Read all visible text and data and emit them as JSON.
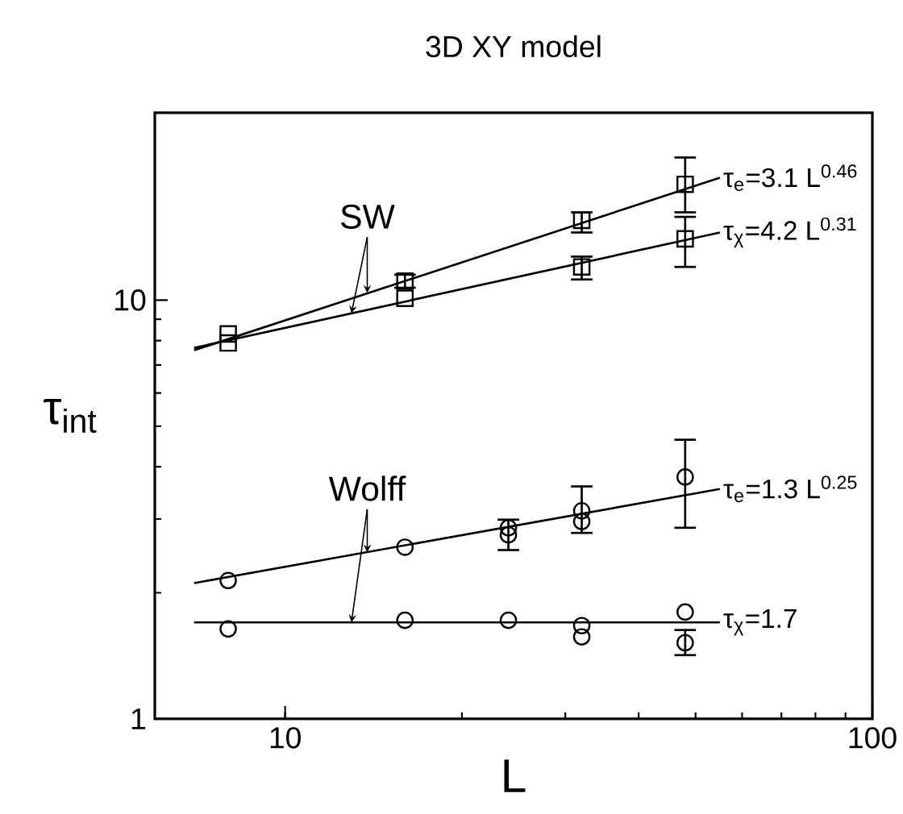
{
  "chart_data": {
    "type": "scatter",
    "title": "3D XY model",
    "xlabel": "L",
    "ylabel": "τ$_{int}$",
    "log": "xy",
    "xlim": [
      6,
      100
    ],
    "ylim": [
      1,
      28
    ],
    "xticks": [
      10,
      100
    ],
    "yticks": [
      1,
      10
    ],
    "grid": false,
    "series": [
      {
        "marker": "square",
        "color": "#000000",
        "x": [
          8,
          16,
          32,
          48
        ],
        "values": [
          8.3,
          11.1,
          15.5,
          18.9
        ],
        "errors": [
          null,
          [
            10.7,
            11.5
          ],
          [
            14.5,
            16.2
          ],
          [
            16.2,
            21.9
          ]
        ]
      },
      {
        "marker": "square",
        "color": "#000000",
        "x": [
          8,
          16,
          32,
          48
        ],
        "values": [
          7.9,
          10.1,
          12.0,
          14.0
        ],
        "errors": [
          null,
          null,
          [
            11.2,
            12.7
          ],
          [
            12.0,
            15.8
          ]
        ]
      },
      {
        "marker": "circle",
        "color": "#000000",
        "x": [
          8,
          16,
          24,
          24,
          32,
          32,
          48
        ],
        "values": [
          2.14,
          2.57,
          2.86,
          2.75,
          3.14,
          2.96,
          3.78
        ],
        "errors": [
          null,
          null,
          [
            2.53,
            2.99
          ],
          null,
          [
            2.78,
            3.59
          ],
          null,
          [
            2.86,
            4.64
          ]
        ]
      },
      {
        "marker": "circle",
        "color": "#000000",
        "x": [
          8,
          16,
          24,
          32,
          32,
          48,
          48
        ],
        "values": [
          1.64,
          1.72,
          1.72,
          1.67,
          1.57,
          1.8,
          1.52
        ],
        "errors": [
          null,
          null,
          null,
          null,
          null,
          null,
          [
            1.42,
            1.63
          ]
        ]
      },
      {
        "type": "line",
        "name": "τ$_{e}$=3.1 L$^{0.46}$",
        "color": "#000000",
        "marker": "none",
        "line_style": "solid",
        "x": [
          7,
          55
        ],
        "values": [
          7.59,
          19.6
        ]
      },
      {
        "type": "line",
        "name": "τ$_{χ}$=4.2 L$^{0.31}$",
        "color": "#000000",
        "marker": "none",
        "line_style": "solid",
        "x": [
          7,
          55
        ],
        "values": [
          7.69,
          14.5
        ]
      },
      {
        "type": "line",
        "name": "τ$_{e}$=1.3 L$^{0.25}$",
        "color": "#000000",
        "marker": "none",
        "line_style": "solid",
        "x": [
          7,
          55
        ],
        "values": [
          2.11,
          3.54
        ]
      },
      {
        "type": "line",
        "name": "τ$_{χ}$=1.7",
        "color": "#000000",
        "marker": "none",
        "line_style": "solid",
        "x": [
          7,
          55
        ],
        "values": [
          1.7,
          1.7
        ]
      }
    ],
    "annotations": [
      {
        "text": "SW",
        "x": 13.8,
        "y": 10.4
      },
      {
        "text": "Wolff",
        "x": 13.8,
        "y": 2.5
      }
    ]
  }
}
